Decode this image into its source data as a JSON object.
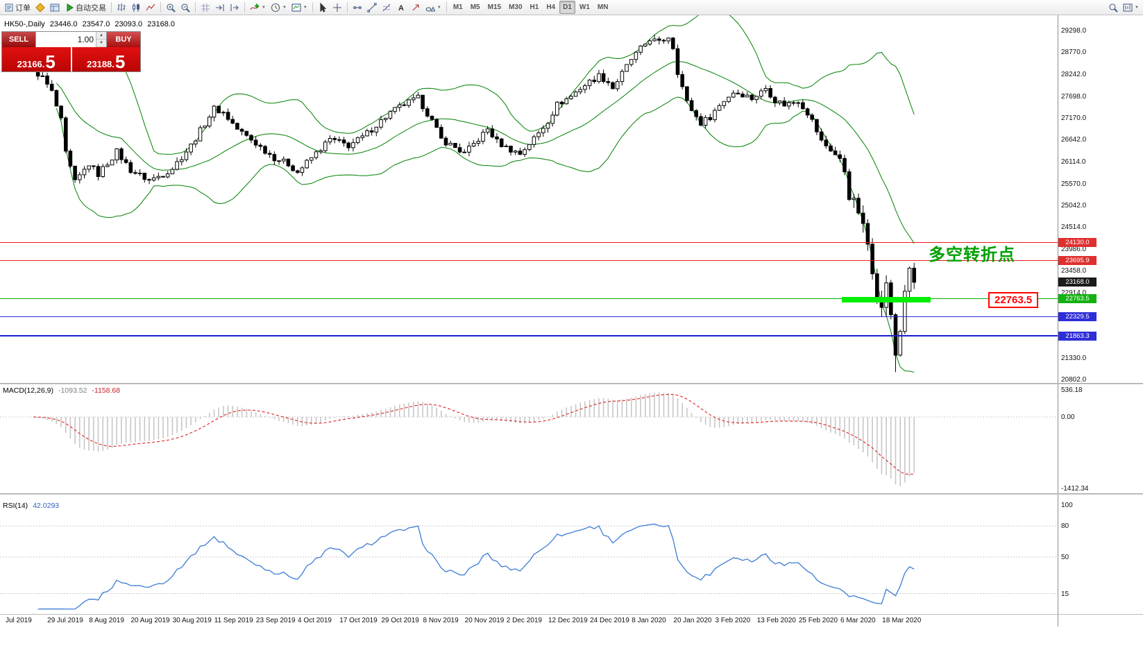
{
  "toolbar": {
    "items": [
      {
        "name": "orders-button",
        "icon": "orders",
        "label": "订单"
      },
      {
        "name": "new-order-button",
        "icon": "diamond"
      },
      {
        "name": "terminal-panel-button",
        "icon": "panel"
      },
      {
        "name": "auto-trading-button",
        "icon": "play",
        "label": "自动交易"
      },
      {
        "type": "divider"
      },
      {
        "name": "bar-chart-button",
        "icon": "bar-chart"
      },
      {
        "name": "candlestick-chart-button",
        "icon": "candle-chart"
      },
      {
        "name": "line-chart-button",
        "icon": "line-chart"
      },
      {
        "type": "divider"
      },
      {
        "name": "zoom-in-button",
        "icon": "zoom-in"
      },
      {
        "name": "zoom-out-button",
        "icon": "zoom-out"
      },
      {
        "type": "divider"
      },
      {
        "name": "grid-button",
        "icon": "grid"
      },
      {
        "name": "auto-scroll-button",
        "icon": "auto-scroll"
      },
      {
        "name": "chart-shift-button",
        "icon": "chart-shift"
      },
      {
        "type": "divider"
      },
      {
        "name": "indicators-button",
        "icon": "indicator-plus",
        "caret": true
      },
      {
        "name": "periods-button",
        "icon": "clock",
        "caret": true
      },
      {
        "name": "templates-button",
        "icon": "template",
        "caret": true
      },
      {
        "type": "divider"
      },
      {
        "name": "cursor-button",
        "icon": "cursor"
      },
      {
        "name": "crosshair-button",
        "icon": "crosshair"
      },
      {
        "type": "divider"
      },
      {
        "name": "horizontal-line-button",
        "icon": "hline"
      },
      {
        "name": "trendline-button",
        "icon": "trendline"
      },
      {
        "name": "fibonacci-button",
        "icon": "fibo"
      },
      {
        "name": "text-label-button",
        "icon": "text"
      },
      {
        "name": "arrow-object-button",
        "icon": "arrow-tool"
      },
      {
        "name": "shapes-button",
        "icon": "shapes",
        "caret": true
      },
      {
        "type": "divider"
      }
    ],
    "timeframes": [
      "M1",
      "M5",
      "M15",
      "M30",
      "H1",
      "H4",
      "D1",
      "W1",
      "MN"
    ],
    "active_timeframe": "D1",
    "right_items": [
      {
        "name": "search-button",
        "icon": "search"
      },
      {
        "name": "new-chart-button",
        "icon": "new-chart",
        "caret": true
      }
    ]
  },
  "trade_panel": {
    "sell_label": "SELL",
    "buy_label": "BUY",
    "volume": "1.00",
    "sell_price_small": "23166.",
    "sell_price_big": "5",
    "buy_price_small": "23188.",
    "buy_price_big": "5"
  },
  "chart_header": {
    "symbol": "HK50-,Daily",
    "open": "23446.0",
    "high": "23547.0",
    "low": "23093.0",
    "close": "23168.0"
  },
  "annotations": {
    "turning_point_text": "多空转折点",
    "turning_point_color": "#00A000",
    "level_box_text": "22763.5",
    "level_box_color": "#ff0000",
    "highlight_bar_color": "#00ee00"
  },
  "price_axis": {
    "ticks": [
      "29298.0",
      "28770.0",
      "28242.0",
      "27698.0",
      "27170.0",
      "26642.0",
      "26114.0",
      "25570.0",
      "25042.0",
      "24514.0",
      "23986.0",
      "23458.0",
      "22914.0",
      "21330.0",
      "20802.0"
    ]
  },
  "levels": [
    {
      "price": 24130.0,
      "label": "24130.0",
      "line": "#f01818",
      "width": 1,
      "badge": "#df3030"
    },
    {
      "price": 23695.9,
      "label": "23695.9",
      "line": "#f01818",
      "width": 1,
      "badge": "#df3030"
    },
    {
      "price": 23168.0,
      "label": "23168.0",
      "line": null,
      "width": 0,
      "badge": "#1b1b1b"
    },
    {
      "price": 22763.5,
      "label": "22763.5",
      "line": "#00b000",
      "width": 1,
      "badge": "#12b212"
    },
    {
      "price": 22329.5,
      "label": "22329.5",
      "line": "#2a2ae0",
      "width": 1,
      "badge": "#2f2fd8"
    },
    {
      "price": 21863.3,
      "label": "21863.3",
      "line": "#1c1ccd",
      "width": 2,
      "badge": "#2f2fd8"
    }
  ],
  "macd_panel": {
    "label": "MACD(12,26,9)",
    "value_main": "-1093.52",
    "value_signal": "-1158.68",
    "axis_labels": [
      "536.18",
      "0.00",
      "-1412.34"
    ],
    "histogram_color": "#c6c6c6",
    "signal_color": "#e03030"
  },
  "rsi_panel": {
    "label": "RSI(14)",
    "value": "42.0293",
    "axis_labels": [
      "100",
      "80",
      "50",
      "15"
    ],
    "line_color": "#3a7bd5"
  },
  "date_axis": {
    "labels": [
      "Jul 2019",
      "29 Jul 2019",
      "8 Aug 2019",
      "20 Aug 2019",
      "30 Aug 2019",
      "11 Sep 2019",
      "23 Sep 2019",
      "4 Oct 2019",
      "17 Oct 2019",
      "29 Oct 2019",
      "8 Nov 2019",
      "20 Nov 2019",
      "2 Dec 2019",
      "12 Dec 2019",
      "24 Dec 2019",
      "8 Jan 2020",
      "20 Jan 2020",
      "3 Feb 2020",
      "13 Feb 2020",
      "25 Feb 2020",
      "6 Mar 2020",
      "18 Mar 2020"
    ]
  },
  "chart_data": {
    "type": "candlestick",
    "symbol": "HK50",
    "timeframe": "Daily",
    "ohlc_header": [
      23446.0,
      23547.0,
      23093.0,
      23168.0
    ],
    "ylim": [
      20700,
      29570
    ],
    "x_range_dates": [
      "Jul 2019",
      "18 Mar 2020"
    ],
    "candle_count": 191,
    "note": "close path estimated from pixels; candles interpolated between anchors [index, close]",
    "close_anchors": [
      [
        0,
        28350
      ],
      [
        2,
        28150
      ],
      [
        4,
        27800
      ],
      [
        6,
        27100
      ],
      [
        7,
        26300
      ],
      [
        9,
        25600
      ],
      [
        12,
        26050
      ],
      [
        14,
        25800
      ],
      [
        18,
        26350
      ],
      [
        21,
        25900
      ],
      [
        25,
        25650
      ],
      [
        28,
        25800
      ],
      [
        30,
        25950
      ],
      [
        34,
        26500
      ],
      [
        39,
        27400
      ],
      [
        41,
        27300
      ],
      [
        44,
        26900
      ],
      [
        48,
        26550
      ],
      [
        52,
        26200
      ],
      [
        55,
        26050
      ],
      [
        57,
        25850
      ],
      [
        60,
        26200
      ],
      [
        64,
        26650
      ],
      [
        68,
        26500
      ],
      [
        71,
        26700
      ],
      [
        74,
        27000
      ],
      [
        77,
        27300
      ],
      [
        80,
        27500
      ],
      [
        83,
        27650
      ],
      [
        86,
        27100
      ],
      [
        88,
        26650
      ],
      [
        91,
        26450
      ],
      [
        93,
        26300
      ],
      [
        96,
        26650
      ],
      [
        98,
        26900
      ],
      [
        100,
        26600
      ],
      [
        102,
        26450
      ],
      [
        105,
        26300
      ],
      [
        107,
        26550
      ],
      [
        109,
        26800
      ],
      [
        111,
        27100
      ],
      [
        113,
        27500
      ],
      [
        116,
        27700
      ],
      [
        118,
        27900
      ],
      [
        120,
        28050
      ],
      [
        122,
        28200
      ],
      [
        124,
        28050
      ],
      [
        125,
        27900
      ],
      [
        127,
        28250
      ],
      [
        129,
        28600
      ],
      [
        131,
        28850
      ],
      [
        133,
        29100
      ],
      [
        135,
        29000
      ],
      [
        137,
        29150
      ],
      [
        138,
        28900
      ],
      [
        139,
        28300
      ],
      [
        141,
        27550
      ],
      [
        143,
        27200
      ],
      [
        144,
        27050
      ],
      [
        146,
        27200
      ],
      [
        147,
        27350
      ],
      [
        149,
        27600
      ],
      [
        151,
        27800
      ],
      [
        153,
        27750
      ],
      [
        155,
        27650
      ],
      [
        157,
        27800
      ],
      [
        158,
        27900
      ],
      [
        160,
        27600
      ],
      [
        162,
        27500
      ],
      [
        164,
        27550
      ],
      [
        165,
        27600
      ],
      [
        167,
        27300
      ],
      [
        168,
        27100
      ],
      [
        170,
        26600
      ],
      [
        172,
        26400
      ],
      [
        174,
        26150
      ],
      [
        175,
        25900
      ],
      [
        176,
        25300
      ],
      [
        177,
        25100
      ],
      [
        178,
        24900
      ],
      [
        179,
        24500
      ],
      [
        180,
        24100
      ],
      [
        181,
        23500
      ],
      [
        182,
        22900
      ],
      [
        183,
        22500
      ],
      [
        184,
        23200
      ],
      [
        185,
        22300
      ],
      [
        186,
        21400
      ],
      [
        187,
        22000
      ],
      [
        188,
        23000
      ],
      [
        189,
        23400
      ],
      [
        190,
        23168
      ]
    ],
    "overlays": [
      "Bollinger Bands(20,2)"
    ],
    "horizontal_levels": [
      24130.0,
      23695.9,
      23168.0,
      22763.5,
      22329.5,
      21863.3
    ],
    "colors": {
      "up": "#ffffff",
      "down": "#000000",
      "outline": "#000000",
      "bollinger": "#008000"
    }
  }
}
